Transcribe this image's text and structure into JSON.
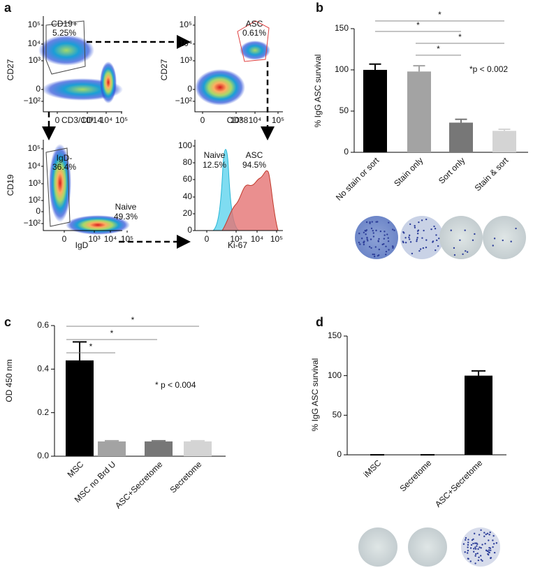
{
  "panel_labels": [
    "a",
    "b",
    "c",
    "d"
  ],
  "flow": {
    "plots": [
      {
        "y_label": "CD27",
        "x_label": "CD3/CD14",
        "y_ticks": [
          "10⁵",
          "10⁴",
          "10³",
          "0",
          "−10²"
        ],
        "x_ticks": [
          "0",
          "10³",
          "10⁴",
          "10⁵"
        ],
        "gates": [
          {
            "name": "CD19+",
            "percent": "5.25%"
          }
        ]
      },
      {
        "y_label": "CD27",
        "x_label": "CD38",
        "y_ticks": [
          "10⁵",
          "10⁴",
          "10³",
          "0",
          "−10²"
        ],
        "x_ticks": [
          "0",
          "10³",
          "10⁴",
          "10⁵"
        ],
        "gates": [
          {
            "name": "ASC",
            "percent": "0.61%"
          }
        ]
      },
      {
        "y_label": "CD19",
        "x_label": "IgD",
        "y_ticks": [
          "10⁵",
          "10⁴",
          "10³",
          "10²",
          "0",
          "−10²"
        ],
        "x_ticks": [
          "0",
          "10³",
          "10⁴",
          "10⁵"
        ],
        "gates": [
          {
            "name": "IgD-",
            "percent": "36.4%"
          },
          {
            "name": "Naive",
            "percent": "49.3%"
          }
        ]
      },
      {
        "x_label": "Ki-67",
        "y_ticks": [
          "100",
          "80",
          "60",
          "40",
          "20",
          "0"
        ],
        "x_ticks": [
          "0",
          "10³",
          "10⁴",
          "10⁵"
        ],
        "gates": [
          {
            "name": "Naive",
            "percent": "12.5%"
          },
          {
            "name": "ASC",
            "percent": "94.5%"
          }
        ]
      }
    ]
  },
  "chart_data": [
    {
      "type": "bar",
      "y_label": "% IgG ASC survival",
      "categories": [
        "No stain or sort",
        "Stain only",
        "Sort only",
        "Stain & sort"
      ],
      "values": [
        100,
        98,
        36,
        26
      ],
      "errors": [
        7,
        7,
        4,
        2
      ],
      "colors": [
        "#000000",
        "#a3a3a3",
        "#777777",
        "#d4d4d4"
      ],
      "ylim": [
        0,
        150
      ],
      "yticks": [
        0,
        50,
        100,
        150
      ],
      "note": "*p < 0.002",
      "significance": [
        "*",
        "*",
        "*",
        "*"
      ]
    },
    {
      "type": "bar",
      "y_label": "OD 450 nm",
      "categories": [
        "MSC",
        "MSC no Brd U",
        "ASC+Secretome",
        "Secretome"
      ],
      "values": [
        0.44,
        0.068,
        0.068,
        0.068
      ],
      "errors": [
        0.085,
        0.003,
        0.003,
        0.003
      ],
      "colors": [
        "#000000",
        "#a3a3a3",
        "#777777",
        "#d4d4d4"
      ],
      "ylim": [
        0,
        0.6
      ],
      "yticks": [
        {
          "value": 0,
          "label": "0.0"
        },
        0.2,
        0.4,
        0.6
      ],
      "note": "* p < 0.004",
      "significance": [
        "*",
        "*",
        "*"
      ]
    },
    {
      "type": "bar",
      "y_label": "% IgG ASC survival",
      "categories": [
        "iMSC",
        "Secretome",
        "ASC+Secretome"
      ],
      "values": [
        0,
        0,
        100
      ],
      "errors": [
        0,
        0,
        6
      ],
      "colors": [
        "#000000",
        "#000000",
        "#000000"
      ],
      "ylim": [
        0,
        150
      ],
      "yticks": [
        0,
        50,
        100,
        150
      ]
    }
  ]
}
